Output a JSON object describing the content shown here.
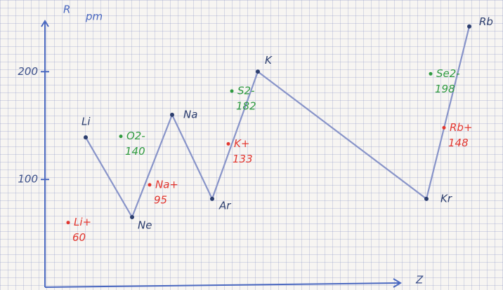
{
  "chart_data": {
    "type": "line",
    "ylabel": "R",
    "yunit": "pm",
    "xlabel": "Z",
    "categories": [
      "Li",
      "Ne",
      "Na",
      "Ar",
      "K",
      "Kr",
      "Rb"
    ],
    "values": [
      139,
      65,
      160,
      82,
      200,
      82,
      242
    ],
    "line_color": "#8894c9",
    "point_color": "#2c3e6e",
    "label_color": "#3b4f8a",
    "axis_color": "#4a68c0",
    "ylim": [
      0,
      247
    ],
    "yticks": [
      100,
      200
    ],
    "ions": [
      {
        "name": "Li+",
        "value": 60,
        "color": "#e2362f"
      },
      {
        "name": "O2-",
        "value": 140,
        "color": "#2e9a40"
      },
      {
        "name": "Na+",
        "value": 95,
        "color": "#e2362f"
      },
      {
        "name": "S2-",
        "value": 182,
        "color": "#2e9a40"
      },
      {
        "name": "K+",
        "value": 133,
        "color": "#e2362f"
      },
      {
        "name": "Se2-",
        "value": 198,
        "color": "#2e9a40"
      },
      {
        "name": "Rb+",
        "value": 148,
        "color": "#e2362f"
      }
    ]
  }
}
